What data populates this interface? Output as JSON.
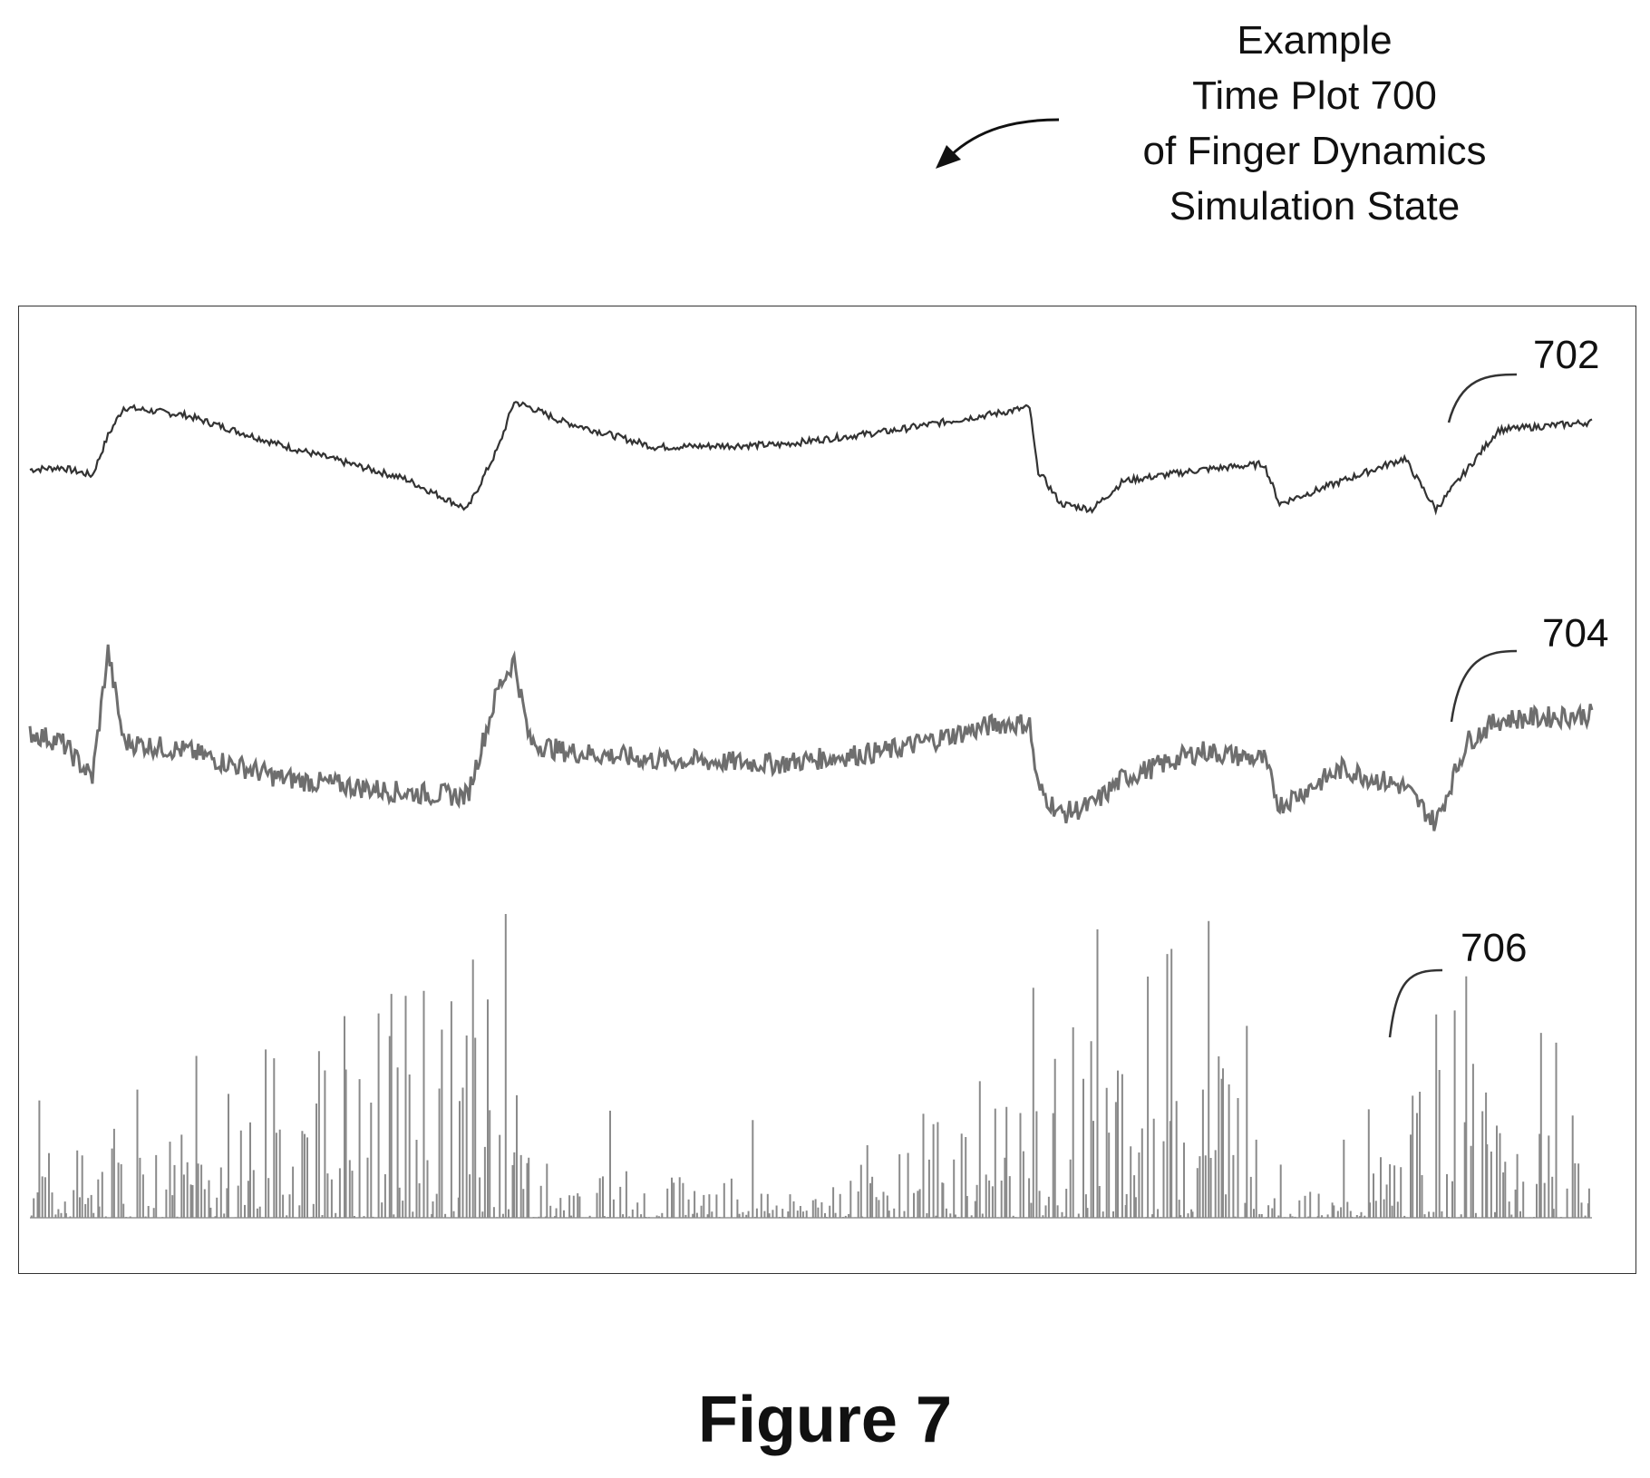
{
  "caption": {
    "lines": [
      "Example",
      "Time Plot 700",
      "of Finger Dynamics",
      "Simulation State"
    ]
  },
  "figure_title": "Figure 7",
  "chart_data": {
    "type": "line",
    "title": "Example Time Plot 700 of Finger Dynamics Simulation State",
    "xlabel": "",
    "ylabel": "",
    "grid": false,
    "axes_visible": false,
    "x": [
      0,
      2,
      4,
      5,
      6,
      10,
      16,
      24,
      28,
      30,
      31,
      32,
      34,
      40,
      48,
      55,
      62,
      64,
      64.5,
      66,
      68,
      70,
      75,
      79,
      80,
      84,
      88,
      90,
      92,
      94,
      100
    ],
    "series": [
      {
        "ref": "702",
        "color": "#333333",
        "values": [
          0.4,
          0.42,
          0.35,
          0.7,
          0.95,
          0.88,
          0.62,
          0.32,
          0.05,
          0.6,
          1.0,
          0.95,
          0.83,
          0.6,
          0.62,
          0.74,
          0.9,
          0.95,
          0.4,
          0.1,
          0.05,
          0.3,
          0.4,
          0.45,
          0.1,
          0.3,
          0.5,
          0.05,
          0.4,
          0.75,
          0.82
        ]
      },
      {
        "ref": "704",
        "color": "#6e6e6e",
        "values": [
          0.55,
          0.5,
          0.3,
          1.0,
          0.5,
          0.45,
          0.3,
          0.22,
          0.2,
          0.8,
          0.95,
          0.5,
          0.45,
          0.4,
          0.38,
          0.45,
          0.6,
          0.6,
          0.25,
          0.1,
          0.15,
          0.3,
          0.45,
          0.4,
          0.15,
          0.35,
          0.25,
          0.05,
          0.5,
          0.62,
          0.65
        ]
      },
      {
        "ref": "706",
        "color": "#8a8a8a",
        "values": [
          0.05,
          0.5,
          0.1,
          0.4,
          0.2,
          0.3,
          0.6,
          0.8,
          0.95,
          1.0,
          0.6,
          0.3,
          0.1,
          0.2,
          0.1,
          0.3,
          0.5,
          0.7,
          0.4,
          0.6,
          0.8,
          0.5,
          0.8,
          0.6,
          0.2,
          0.05,
          0.3,
          0.7,
          0.8,
          0.5,
          0.3
        ]
      }
    ]
  }
}
